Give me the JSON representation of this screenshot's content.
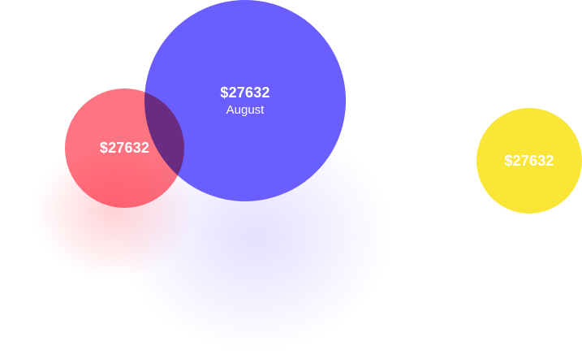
{
  "bubbles": {
    "primary": {
      "value": "$27632",
      "label": "August",
      "color": "#6a5ffe"
    },
    "secondary": {
      "value": "$27632",
      "color": "#ff5c6c"
    },
    "tertiary": {
      "value": "$27632",
      "color": "#fae637"
    }
  }
}
